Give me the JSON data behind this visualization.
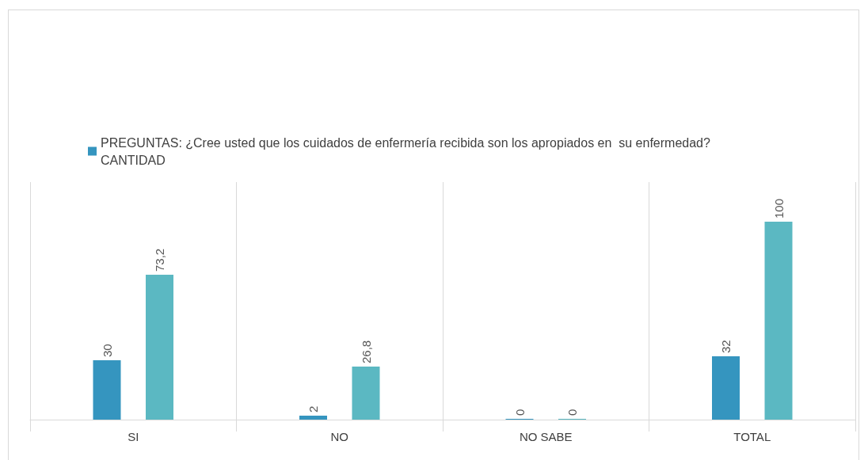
{
  "chart_data": {
    "type": "bar",
    "categories": [
      "SI",
      "NO",
      "NO SABE",
      "TOTAL"
    ],
    "series": [
      {
        "name": "PREGUNTAS: ¿Cree usted que los cuidados de enfermería recibida son los apropiados en  su enfermedad? CANTIDAD",
        "color": "#3595bf",
        "values": [
          30,
          2,
          0,
          32
        ],
        "value_labels": [
          "30",
          "2",
          "0",
          "32"
        ]
      },
      {
        "color": "#5bb8c2",
        "values": [
          73.2,
          26.8,
          0,
          100
        ],
        "value_labels": [
          "73,2",
          "26,8",
          "0",
          "100"
        ]
      }
    ],
    "ylim": [
      0,
      120
    ],
    "tick_labels": "x",
    "grid": "x",
    "legend": "top"
  }
}
